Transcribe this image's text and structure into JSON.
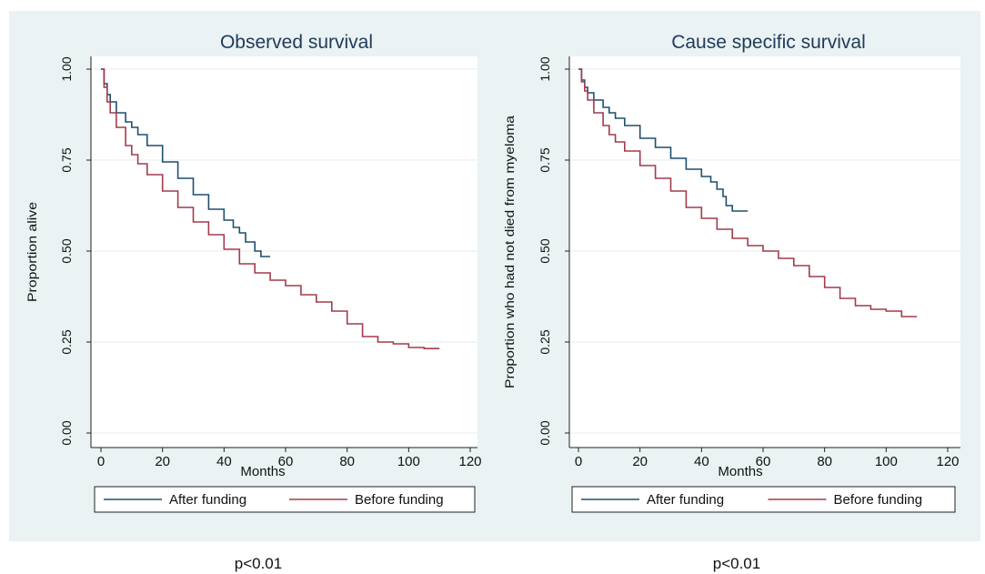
{
  "charts": [
    {
      "type": "line",
      "title": "Observed survival",
      "xlabel": "Months",
      "ylabel": "Proportion alive",
      "xlim": [
        0,
        120
      ],
      "ylim": [
        0,
        1
      ],
      "xticks": [
        "0",
        "20",
        "40",
        "60",
        "80",
        "100",
        "120"
      ],
      "yticks": [
        "0.00",
        "0.25",
        "0.50",
        "0.75",
        "1.00"
      ],
      "grid": "horizontal",
      "legend": "bottom",
      "p_value": "p<0.01",
      "series": [
        {
          "name": "After funding",
          "color": "#1f4e6e",
          "x": [
            0,
            1,
            2,
            3,
            5,
            8,
            10,
            12,
            15,
            20,
            25,
            30,
            35,
            40,
            43,
            45,
            47,
            50,
            52,
            55
          ],
          "y": [
            1.0,
            0.96,
            0.93,
            0.91,
            0.88,
            0.855,
            0.84,
            0.82,
            0.79,
            0.745,
            0.7,
            0.655,
            0.615,
            0.585,
            0.565,
            0.55,
            0.525,
            0.5,
            0.485,
            0.485
          ]
        },
        {
          "name": "Before funding",
          "color": "#a23b4b",
          "x": [
            0,
            1,
            2,
            3,
            5,
            8,
            10,
            12,
            15,
            20,
            25,
            30,
            35,
            40,
            45,
            50,
            55,
            60,
            65,
            70,
            75,
            80,
            85,
            90,
            95,
            100,
            105,
            110
          ],
          "y": [
            1.0,
            0.95,
            0.91,
            0.88,
            0.84,
            0.79,
            0.765,
            0.74,
            0.71,
            0.665,
            0.62,
            0.58,
            0.545,
            0.505,
            0.465,
            0.44,
            0.42,
            0.405,
            0.38,
            0.36,
            0.335,
            0.3,
            0.265,
            0.25,
            0.245,
            0.235,
            0.232,
            0.232
          ]
        }
      ]
    },
    {
      "type": "line",
      "title": "Cause specific survival",
      "xlabel": "Months",
      "ylabel": "Proportion who had not died from myeloma",
      "xlim": [
        0,
        120
      ],
      "ylim": [
        0,
        1
      ],
      "xticks": [
        "0",
        "20",
        "40",
        "60",
        "80",
        "100",
        "120"
      ],
      "yticks": [
        "0.00",
        "0.25",
        "0.50",
        "0.75",
        "1.00"
      ],
      "grid": "horizontal",
      "legend": "bottom",
      "p_value": "p<0.01",
      "series": [
        {
          "name": "After funding",
          "color": "#1f4e6e",
          "x": [
            0,
            1,
            2,
            3,
            5,
            8,
            10,
            12,
            15,
            20,
            25,
            30,
            35,
            40,
            43,
            45,
            47,
            48,
            50,
            55
          ],
          "y": [
            1.0,
            0.97,
            0.95,
            0.935,
            0.915,
            0.895,
            0.88,
            0.865,
            0.845,
            0.81,
            0.785,
            0.755,
            0.725,
            0.705,
            0.69,
            0.67,
            0.65,
            0.625,
            0.61,
            0.61
          ]
        },
        {
          "name": "Before funding",
          "color": "#a23b4b",
          "x": [
            0,
            1,
            2,
            3,
            5,
            8,
            10,
            12,
            15,
            20,
            25,
            30,
            35,
            40,
            45,
            50,
            55,
            60,
            65,
            70,
            75,
            80,
            85,
            90,
            95,
            100,
            105,
            110
          ],
          "y": [
            1.0,
            0.965,
            0.94,
            0.915,
            0.88,
            0.845,
            0.82,
            0.8,
            0.775,
            0.735,
            0.7,
            0.665,
            0.62,
            0.59,
            0.56,
            0.535,
            0.515,
            0.5,
            0.48,
            0.46,
            0.43,
            0.4,
            0.37,
            0.35,
            0.34,
            0.335,
            0.32,
            0.32
          ]
        }
      ]
    }
  ]
}
